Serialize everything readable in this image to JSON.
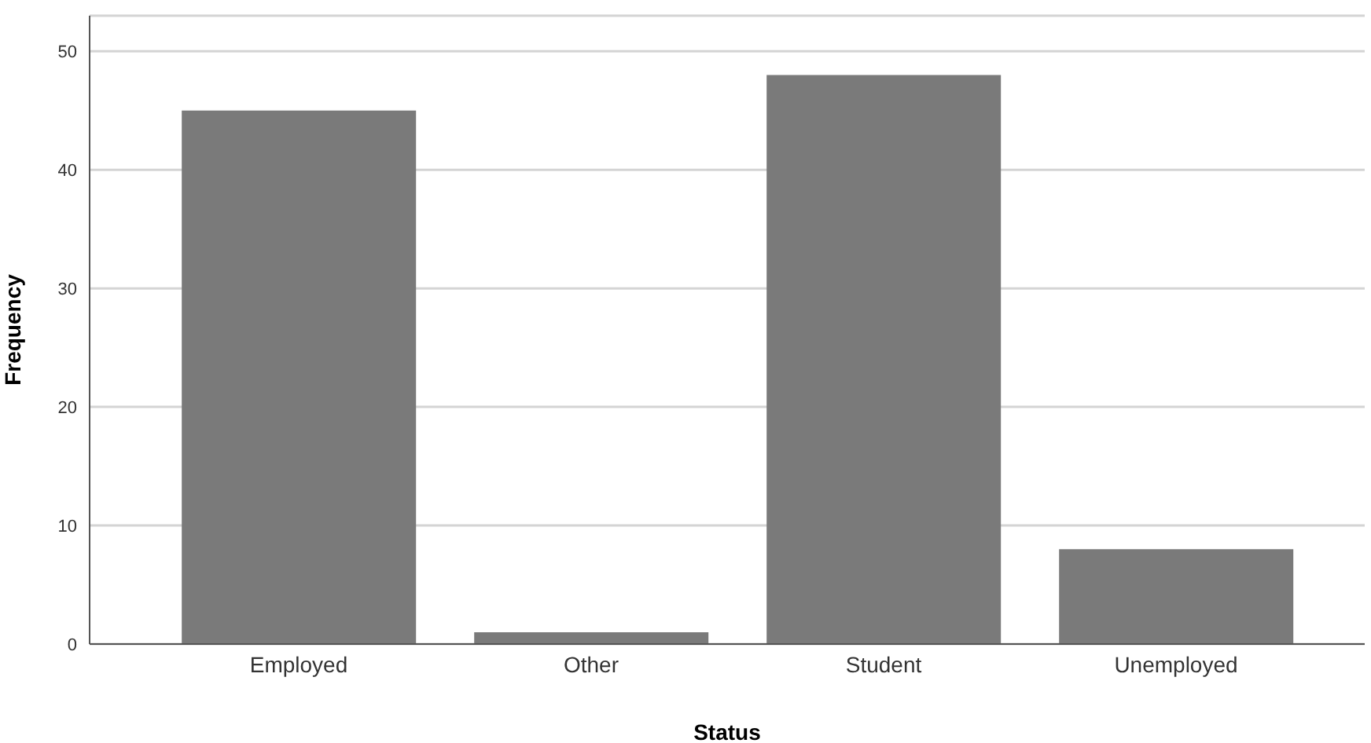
{
  "chart_data": {
    "type": "bar",
    "xlabel": "Status",
    "ylabel": "Frequency",
    "categories": [
      "Employed",
      "Other",
      "Student",
      "Unemployed"
    ],
    "values": [
      45,
      1,
      48,
      8
    ],
    "color": "#7a7a7a",
    "ylim": [
      0,
      53
    ],
    "yticks": [
      0,
      10,
      20,
      30,
      40,
      50
    ],
    "grid": "y"
  }
}
